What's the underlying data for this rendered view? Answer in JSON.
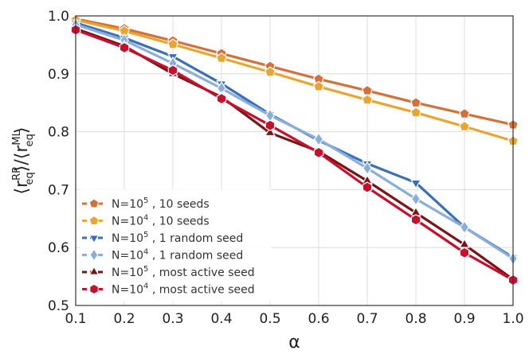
{
  "chart_data": {
    "type": "line",
    "title": "",
    "xlabel": "α",
    "ylabel": "⟨r_eq^RP⟩/⟨r_eq^ML⟩",
    "ylabel_parts": {
      "open": "⟨r",
      "sup1": "RP",
      "sub1": "eq",
      "mid": "⟩/⟨r",
      "sup2": "ML",
      "sub2": "eq",
      "close": "⟩"
    },
    "xlim": [
      0.1,
      1.0
    ],
    "ylim": [
      0.5,
      1.0
    ],
    "x_ticks": [
      0.1,
      0.2,
      0.3,
      0.4,
      0.5,
      0.6,
      0.7,
      0.8,
      0.9,
      1.0
    ],
    "x_tick_labels": [
      "0.1",
      "0.2",
      "0.3",
      "0.4",
      "0.5",
      "0.6",
      "0.7",
      "0.8",
      "0.9",
      "1.0"
    ],
    "y_ticks": [
      0.5,
      0.6,
      0.7,
      0.8,
      0.9,
      1.0
    ],
    "y_tick_labels": [
      "0.5",
      "0.6",
      "0.7",
      "0.8",
      "0.9",
      "1.0"
    ],
    "grid": true,
    "legend_position": "bottom-left",
    "x": [
      0.1,
      0.2,
      0.3,
      0.4,
      0.5,
      0.6,
      0.7,
      0.8,
      0.9,
      1.0
    ],
    "series": [
      {
        "name": "N=10^5 , 10 seeds",
        "legend_base": "N=10",
        "legend_exp": "5",
        "legend_rest": " , 10 seeds",
        "color": "#d4703a",
        "marker": "pentagon",
        "values": [
          0.995,
          0.978,
          0.957,
          0.935,
          0.913,
          0.891,
          0.871,
          0.85,
          0.831,
          0.812
        ]
      },
      {
        "name": "N=10^4 , 10 seeds",
        "legend_base": "N=10",
        "legend_exp": "4",
        "legend_rest": " , 10 seeds",
        "color": "#e8a531",
        "marker": "pentagon",
        "values": [
          0.993,
          0.974,
          0.951,
          0.927,
          0.903,
          0.878,
          0.855,
          0.833,
          0.809,
          0.784
        ]
      },
      {
        "name": "N=10^5 , 1 random seed",
        "legend_base": "N=10",
        "legend_exp": "5",
        "legend_rest": " , 1 random seed",
        "color": "#3a6fb4",
        "marker": "triangle-down",
        "values": [
          0.988,
          0.962,
          0.93,
          0.883,
          0.83,
          0.785,
          0.745,
          0.712,
          0.635,
          0.583
        ]
      },
      {
        "name": "N=10^4 , 1 random seed",
        "legend_base": "N=10",
        "legend_exp": "4",
        "legend_rest": " , 1 random seed",
        "color": "#8aaedc",
        "marker": "diamond",
        "values": [
          0.985,
          0.958,
          0.918,
          0.875,
          0.828,
          0.787,
          0.737,
          0.684,
          0.635,
          0.581
        ]
      },
      {
        "name": "N=10^5 , most active seed",
        "legend_base": "N=10",
        "legend_exp": "5",
        "legend_rest": " , most active seed",
        "color": "#7a1416",
        "marker": "triangle-up",
        "values": [
          0.978,
          0.948,
          0.9,
          0.86,
          0.798,
          0.766,
          0.715,
          0.66,
          0.605,
          0.545
        ]
      },
      {
        "name": "N=10^4 , most active seed",
        "legend_base": "N=10",
        "legend_exp": "4",
        "legend_rest": " , most active seed",
        "color": "#c8102e",
        "marker": "hexagon",
        "values": [
          0.976,
          0.945,
          0.906,
          0.857,
          0.811,
          0.764,
          0.704,
          0.648,
          0.591,
          0.544
        ]
      }
    ]
  }
}
